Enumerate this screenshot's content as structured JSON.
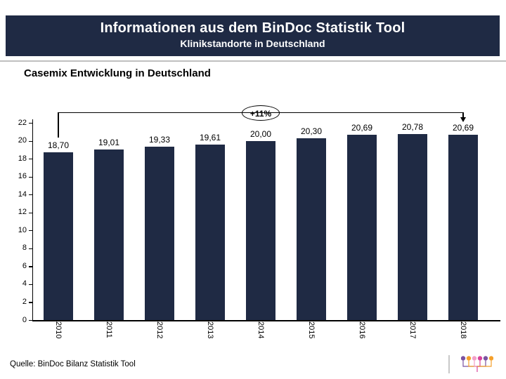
{
  "header": {
    "title": "Informationen aus dem BinDoc Statistik Tool",
    "subtitle": "Klinikstandorte in Deutschland",
    "bg_color": "#1f2a44",
    "text_color": "#ffffff"
  },
  "section": {
    "title": "Casemix Entwicklung in Deutschland"
  },
  "annotation": {
    "label": "+11%"
  },
  "chart_data": {
    "type": "bar",
    "title": "Casemix Entwicklung in Deutschland",
    "categories": [
      "2010",
      "2011",
      "2012",
      "2013",
      "2014",
      "2015",
      "2016",
      "2017",
      "2018"
    ],
    "values": [
      18.7,
      19.01,
      19.33,
      19.61,
      20.0,
      20.3,
      20.69,
      20.78,
      20.69
    ],
    "value_labels": [
      "18,70",
      "19,01",
      "19,33",
      "19,61",
      "20,00",
      "20,30",
      "20,69",
      "20,78",
      "20,69"
    ],
    "xlabel": "",
    "ylabel": "",
    "ylim": [
      0,
      22
    ],
    "ytick_step": 2,
    "grid": false,
    "legend": false,
    "bar_color": "#1f2a44",
    "annotation": "+11%",
    "annotation_span": [
      "2010",
      "2018"
    ]
  },
  "footer": {
    "source": "Quelle: BinDoc Bilanz Statistik Tool",
    "logo_name": "bindoc-logo",
    "logo_pin_colors": [
      "#7b52a1",
      "#f5a02b",
      "#f2a0c8",
      "#d8439b",
      "#7b52a1",
      "#f5a02b"
    ]
  }
}
